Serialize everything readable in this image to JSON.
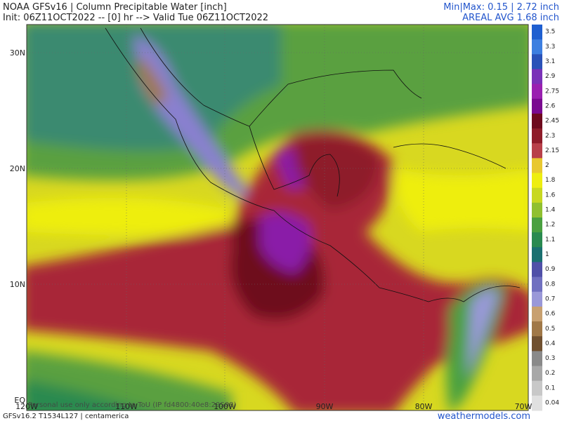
{
  "header": {
    "title": "NOAA GFSv16 | Column Precipitable Water [inch]",
    "init": "Init: 06Z11OCT2022 -- [0] hr --> Valid Tue 06Z11OCT2022",
    "minmax": "Min|Max: 0.15 | 2.72 inch",
    "areal_avg": "AREAL AVG 1.68 inch"
  },
  "map": {
    "lat_labels": [
      "30N",
      "20N",
      "10N",
      "EQ"
    ],
    "lon_labels": [
      "120W",
      "110W",
      "100W",
      "90W",
      "80W",
      "70W"
    ],
    "watermark": "Personal use only according to ToU (IP fd4800:40e8:29S88)",
    "model_info": "GFSv16.2 T1534L127 | centamerica",
    "site": "weathermodels.com"
  },
  "colorbar": {
    "labels": [
      "3.5",
      "3.3",
      "3.1",
      "2.9",
      "2.75",
      "2.6",
      "2.45",
      "2.3",
      "2.15",
      "2",
      "1.8",
      "1.6",
      "1.4",
      "1.2",
      "1.1",
      "1",
      "0.9",
      "0.8",
      "0.7",
      "0.6",
      "0.5",
      "0.4",
      "0.3",
      "0.2",
      "0.1",
      "0.04"
    ],
    "colors": [
      "#1f5fd0",
      "#3d7fe0",
      "#2a52b8",
      "#7a32b8",
      "#9a20b0",
      "#7a0a90",
      "#6e0a1e",
      "#8e1c2a",
      "#b8404a",
      "#e8c830",
      "#eeee10",
      "#c8d820",
      "#90c030",
      "#4aa040",
      "#2a8a50",
      "#1a7070",
      "#5050a8",
      "#7070c0",
      "#9a98d8",
      "#c8a070",
      "#a07848",
      "#705030",
      "#8a8a8a",
      "#a8a8a8",
      "#c8c8c8",
      "#e0e0e0"
    ]
  }
}
